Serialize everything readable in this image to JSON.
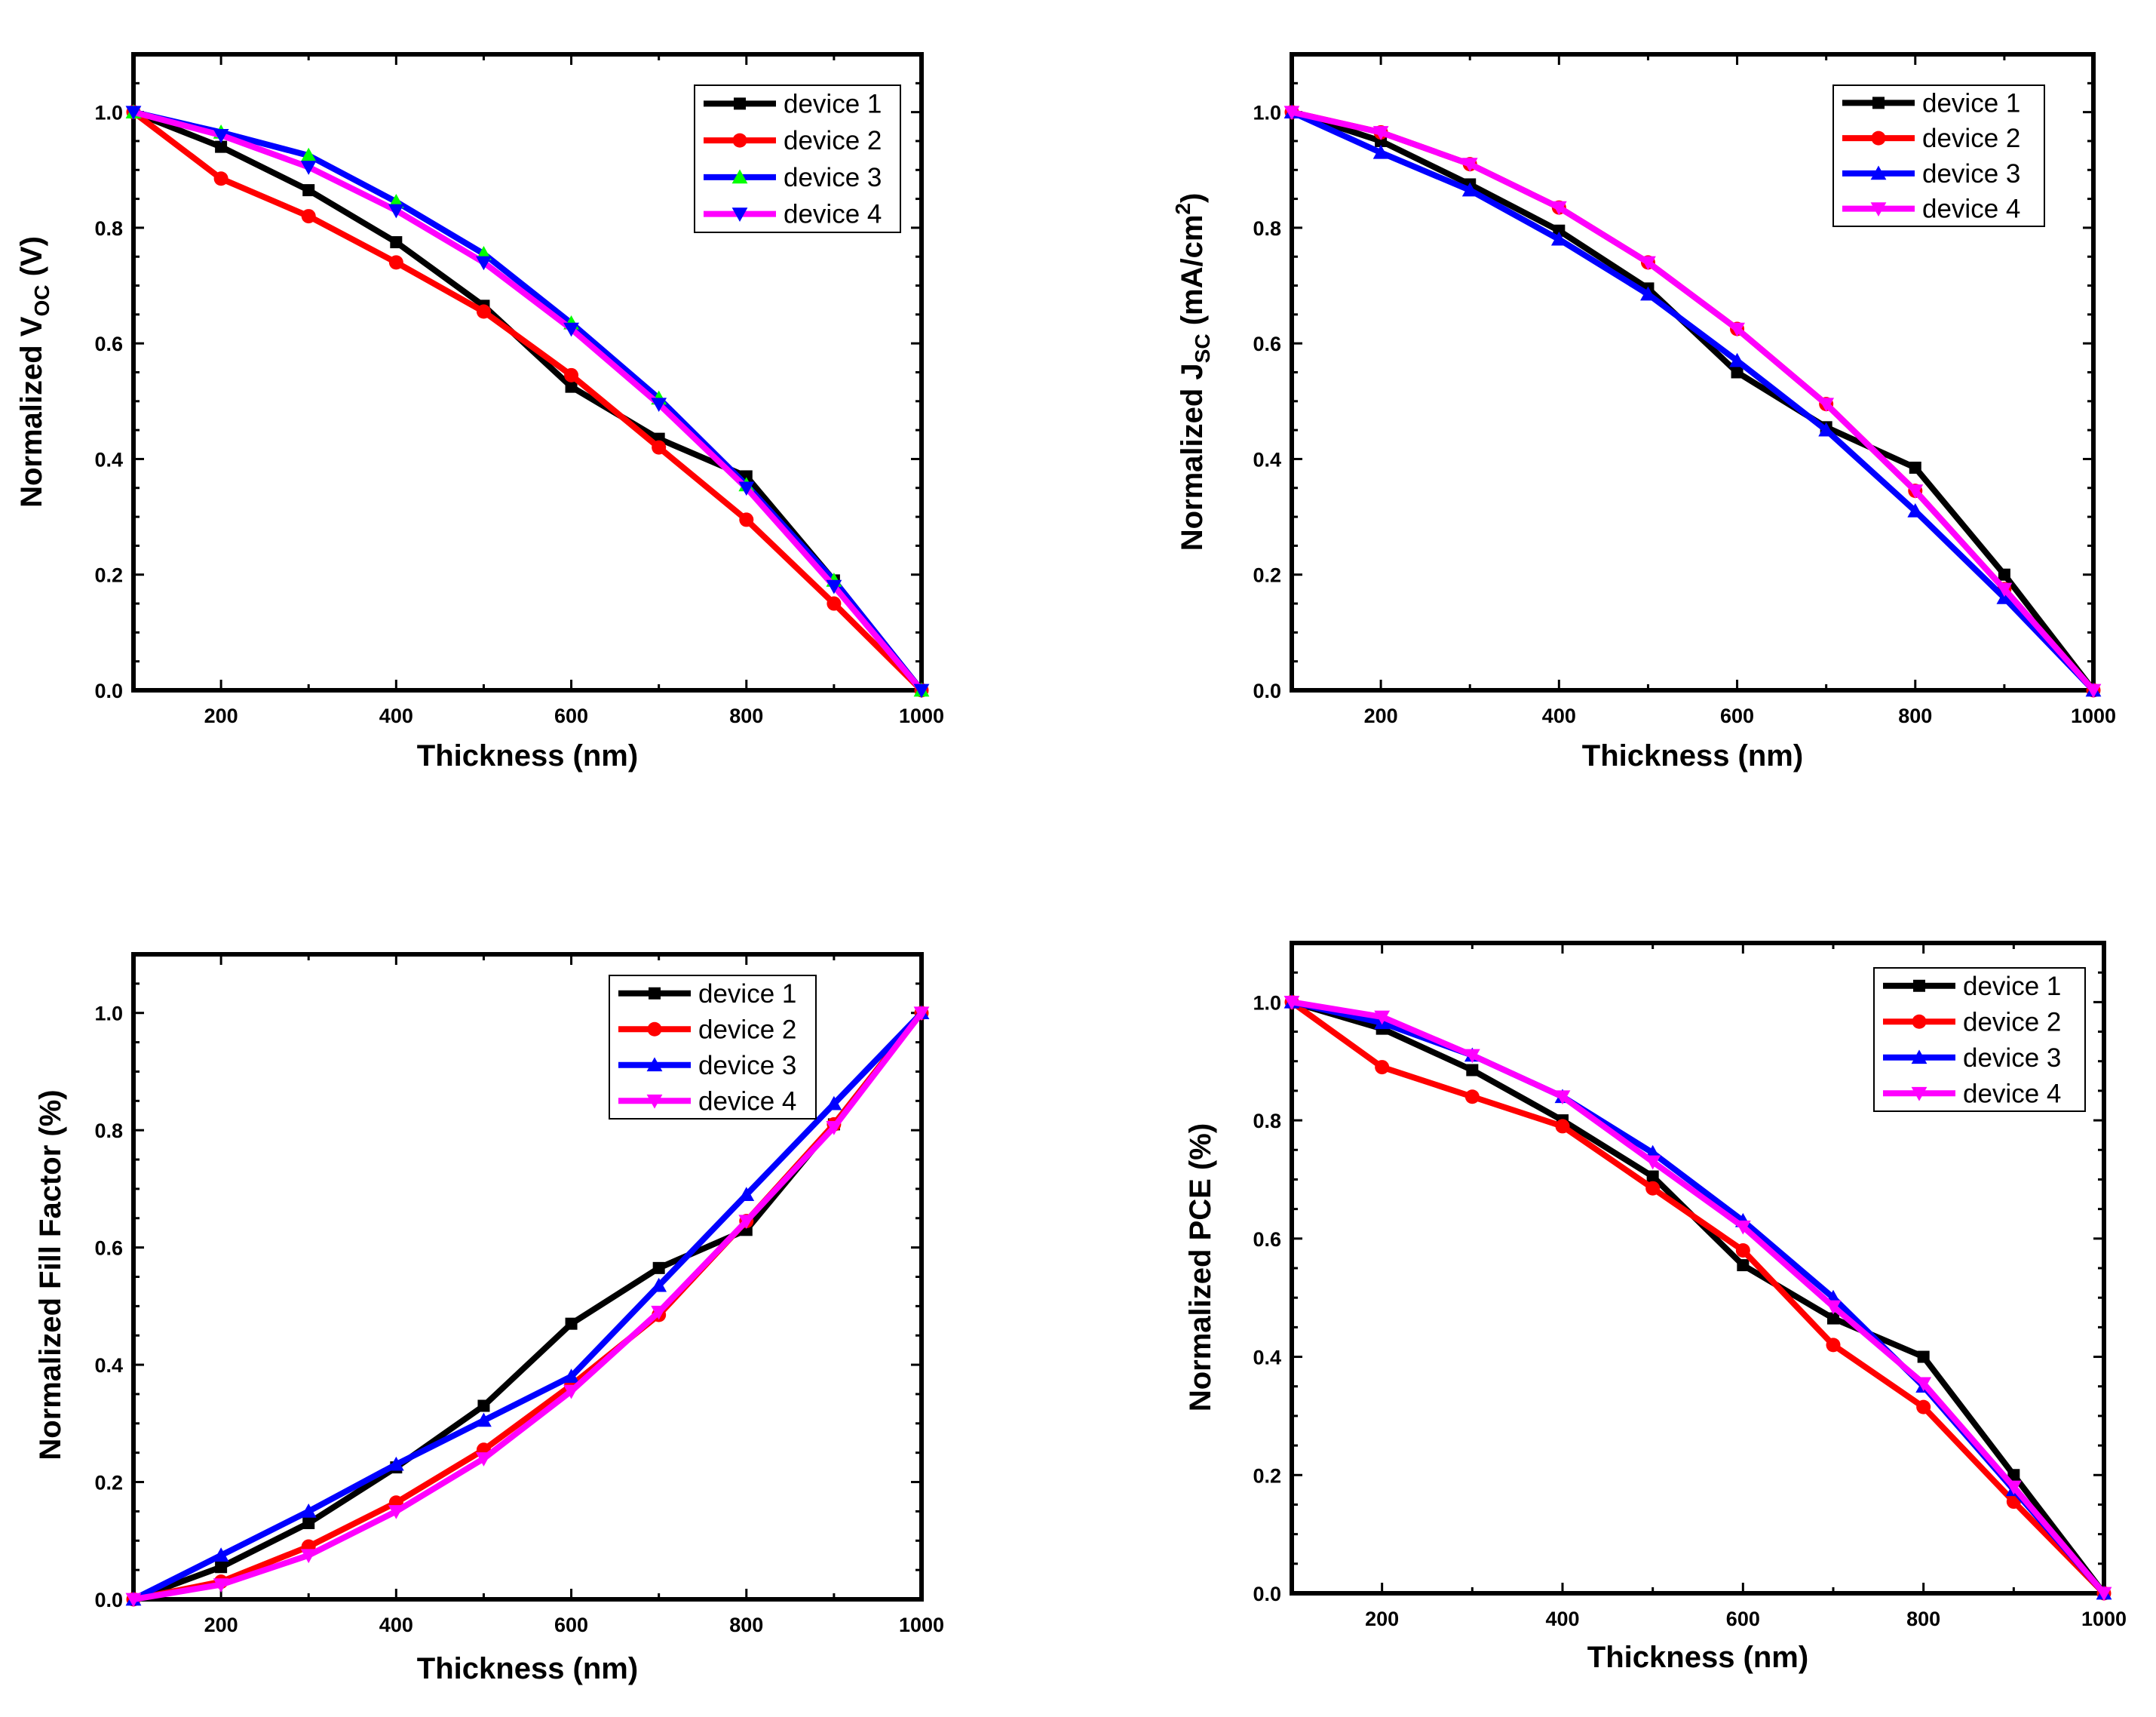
{
  "chart_data": [
    {
      "type": "line",
      "xlabel": "Thickness (nm)",
      "ylabel": {
        "main": "Normalized V",
        "sub": "OC",
        "tail": " (V)"
      },
      "xlim": [
        100,
        1000
      ],
      "ylim": [
        0,
        1.1
      ],
      "xticks": [
        200,
        400,
        600,
        800,
        1000
      ],
      "xtick_labels": [
        "200",
        "400",
        "600",
        "800",
        "1000"
      ],
      "yticks": [
        0.0,
        0.2,
        0.4,
        0.6,
        0.8,
        1.0
      ],
      "ytick_labels": [
        "0.0",
        "0.2",
        "0.4",
        "0.6",
        "0.8",
        "1.0"
      ],
      "legend_position": "top-right",
      "legend_marker_colors": [
        "#000000",
        "#ff0000",
        "#00ff00",
        "#0000ff"
      ],
      "x": [
        100,
        200,
        300,
        400,
        500,
        600,
        700,
        800,
        900,
        1000
      ],
      "series": [
        {
          "name": "device 1",
          "color": "#000000",
          "marker": "square",
          "values": [
            1.0,
            0.94,
            0.865,
            0.775,
            0.665,
            0.525,
            0.435,
            0.37,
            0.19,
            0.0
          ]
        },
        {
          "name": "device 2",
          "color": "#ff0000",
          "marker": "circle",
          "values": [
            1.0,
            0.885,
            0.82,
            0.74,
            0.655,
            0.545,
            0.42,
            0.295,
            0.15,
            0.0
          ]
        },
        {
          "name": "device 3",
          "color": "#0000ff",
          "marker": "triangle-up",
          "marker_color": "#00ff00",
          "values": [
            1.0,
            0.965,
            0.925,
            0.845,
            0.755,
            0.635,
            0.505,
            0.355,
            0.19,
            0.0
          ]
        },
        {
          "name": "device 4",
          "color": "#ff00ff",
          "marker": "triangle-down",
          "marker_color": "#0000ff",
          "values": [
            1.0,
            0.96,
            0.905,
            0.83,
            0.74,
            0.625,
            0.495,
            0.35,
            0.18,
            0.0
          ]
        }
      ]
    },
    {
      "type": "line",
      "xlabel": "Thickness (nm)",
      "ylabel": {
        "main": "Normalized J",
        "sub": "SC",
        "tail": " (mA/cm",
        "sup": "2",
        "close": ")"
      },
      "xlim": [
        100,
        1000
      ],
      "ylim": [
        0,
        1.1
      ],
      "xticks": [
        200,
        400,
        600,
        800,
        1000
      ],
      "xtick_labels": [
        "200",
        "400",
        "600",
        "800",
        "1000"
      ],
      "yticks": [
        0.0,
        0.2,
        0.4,
        0.6,
        0.8,
        1.0
      ],
      "ytick_labels": [
        "0.0",
        "0.2",
        "0.4",
        "0.6",
        "0.8",
        "1.0"
      ],
      "legend_position": "top-right",
      "legend_marker_colors": [
        "#000000",
        "#ff0000",
        "#0000ff",
        "#ff00ff"
      ],
      "x": [
        100,
        200,
        300,
        400,
        500,
        600,
        700,
        800,
        900,
        1000
      ],
      "series": [
        {
          "name": "device 1",
          "color": "#000000",
          "marker": "square",
          "values": [
            1.0,
            0.95,
            0.875,
            0.795,
            0.695,
            0.55,
            0.455,
            0.385,
            0.2,
            0.0
          ]
        },
        {
          "name": "device 2",
          "color": "#ff0000",
          "marker": "circle",
          "values": [
            1.0,
            0.965,
            0.91,
            0.835,
            0.74,
            0.625,
            0.495,
            0.345,
            0.175,
            0.0
          ]
        },
        {
          "name": "device 3",
          "color": "#0000ff",
          "marker": "triangle-up",
          "values": [
            1.0,
            0.93,
            0.865,
            0.78,
            0.685,
            0.57,
            0.45,
            0.31,
            0.16,
            0.0
          ]
        },
        {
          "name": "device 4",
          "color": "#ff00ff",
          "marker": "triangle-down",
          "values": [
            1.0,
            0.965,
            0.91,
            0.835,
            0.74,
            0.625,
            0.495,
            0.345,
            0.175,
            0.0
          ]
        }
      ]
    },
    {
      "type": "line",
      "xlabel": "Thickness (nm)",
      "ylabel": {
        "main": "Normalized Fill Factor (%)"
      },
      "xlim": [
        100,
        1000
      ],
      "ylim": [
        0,
        1.1
      ],
      "xticks": [
        200,
        400,
        600,
        800,
        1000
      ],
      "xtick_labels": [
        "200",
        "400",
        "600",
        "800",
        "1000"
      ],
      "yticks": [
        0.0,
        0.2,
        0.4,
        0.6,
        0.8,
        1.0
      ],
      "ytick_labels": [
        "0.0",
        "0.2",
        "0.4",
        "0.6",
        "0.8",
        "1.0"
      ],
      "legend_position": "top-right",
      "legend_marker_colors": [
        "#000000",
        "#ff0000",
        "#0000ff",
        "#ff00ff"
      ],
      "x": [
        100,
        200,
        300,
        400,
        500,
        600,
        700,
        800,
        900,
        1000
      ],
      "series": [
        {
          "name": "device 1",
          "color": "#000000",
          "marker": "square",
          "values": [
            0.0,
            0.055,
            0.13,
            0.225,
            0.33,
            0.47,
            0.565,
            0.63,
            0.81,
            1.0
          ]
        },
        {
          "name": "device 2",
          "color": "#ff0000",
          "marker": "circle",
          "values": [
            0.0,
            0.03,
            0.09,
            0.165,
            0.255,
            0.365,
            0.485,
            0.645,
            0.81,
            1.0
          ]
        },
        {
          "name": "device 3",
          "color": "#0000ff",
          "marker": "triangle-up",
          "values": [
            0.0,
            0.075,
            0.15,
            0.23,
            0.305,
            0.38,
            0.535,
            0.69,
            0.845,
            1.0
          ]
        },
        {
          "name": "device 4",
          "color": "#ff00ff",
          "marker": "triangle-down",
          "values": [
            0.0,
            0.025,
            0.075,
            0.15,
            0.24,
            0.355,
            0.49,
            0.645,
            0.805,
            1.0
          ]
        }
      ]
    },
    {
      "type": "line",
      "xlabel": "Thickness (nm)",
      "ylabel": {
        "main": "Normalized PCE (%)"
      },
      "xlim": [
        100,
        1000
      ],
      "ylim": [
        0,
        1.1
      ],
      "xticks": [
        200,
        400,
        600,
        800,
        1000
      ],
      "xtick_labels": [
        "200",
        "400",
        "600",
        "800",
        "1000"
      ],
      "yticks": [
        0.0,
        0.2,
        0.4,
        0.6,
        0.8,
        1.0
      ],
      "ytick_labels": [
        "0.0",
        "0.2",
        "0.4",
        "0.6",
        "0.8",
        "1.0"
      ],
      "legend_position": "top-right",
      "legend_marker_colors": [
        "#000000",
        "#ff0000",
        "#0000ff",
        "#ff00ff"
      ],
      "x": [
        100,
        200,
        300,
        400,
        500,
        600,
        700,
        800,
        900,
        1000
      ],
      "series": [
        {
          "name": "device 1",
          "color": "#000000",
          "marker": "square",
          "values": [
            1.0,
            0.955,
            0.885,
            0.8,
            0.705,
            0.555,
            0.465,
            0.4,
            0.2,
            0.0
          ]
        },
        {
          "name": "device 2",
          "color": "#ff0000",
          "marker": "circle",
          "values": [
            1.0,
            0.89,
            0.84,
            0.79,
            0.685,
            0.58,
            0.42,
            0.315,
            0.155,
            0.0
          ]
        },
        {
          "name": "device 3",
          "color": "#0000ff",
          "marker": "triangle-up",
          "values": [
            1.0,
            0.965,
            0.91,
            0.84,
            0.745,
            0.63,
            0.5,
            0.35,
            0.175,
            0.0
          ]
        },
        {
          "name": "device 4",
          "color": "#ff00ff",
          "marker": "triangle-down",
          "values": [
            1.0,
            0.975,
            0.91,
            0.84,
            0.73,
            0.62,
            0.485,
            0.355,
            0.18,
            0.0
          ]
        }
      ]
    }
  ]
}
